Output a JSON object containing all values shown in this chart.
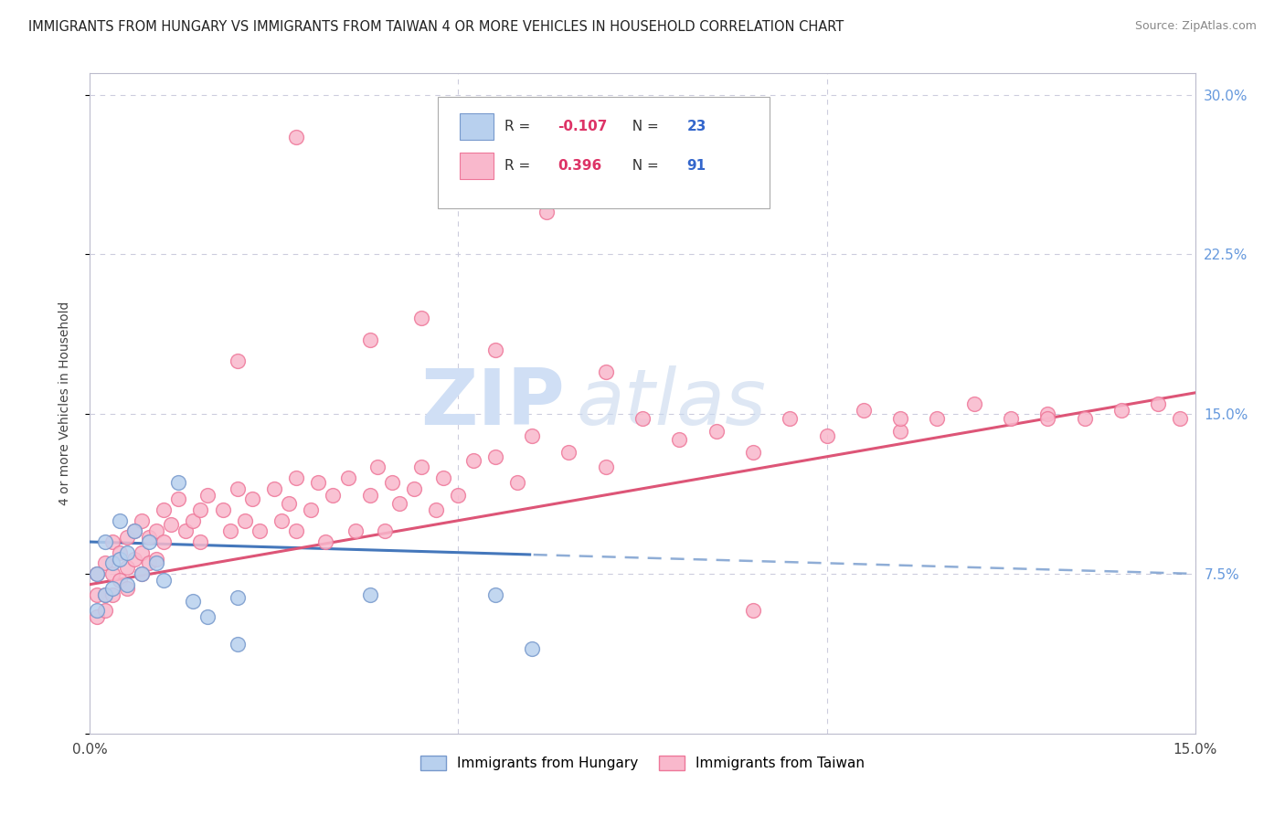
{
  "title": "IMMIGRANTS FROM HUNGARY VS IMMIGRANTS FROM TAIWAN 4 OR MORE VEHICLES IN HOUSEHOLD CORRELATION CHART",
  "source": "Source: ZipAtlas.com",
  "ylabel": "4 or more Vehicles in Household",
  "xlim": [
    0.0,
    0.15
  ],
  "ylim": [
    0.0,
    0.31
  ],
  "hungary_color": "#b8d0ee",
  "taiwan_color": "#f9b8cc",
  "hungary_edge": "#7799cc",
  "taiwan_edge": "#ee7799",
  "trend_hungary_color": "#4477bb",
  "trend_taiwan_color": "#dd5577",
  "background_color": "#ffffff",
  "grid_color": "#ccccdd",
  "watermark_color": "#d0dff5",
  "right_axis_color": "#6699dd",
  "hungary_r": "-0.107",
  "hungary_n": "23",
  "taiwan_r": "0.396",
  "taiwan_n": "91",
  "legend_r_color": "#dd3366",
  "legend_n_color": "#3366cc",
  "hungary_x": [
    0.001,
    0.001,
    0.002,
    0.002,
    0.003,
    0.003,
    0.004,
    0.004,
    0.005,
    0.005,
    0.006,
    0.006,
    0.007,
    0.007,
    0.008,
    0.009,
    0.01,
    0.011,
    0.013,
    0.014,
    0.02,
    0.055,
    0.06
  ],
  "hungary_y": [
    0.075,
    0.06,
    0.09,
    0.065,
    0.095,
    0.075,
    0.1,
    0.08,
    0.085,
    0.07,
    0.09,
    0.075,
    0.095,
    0.08,
    0.085,
    0.075,
    0.07,
    0.12,
    0.065,
    0.06,
    0.065,
    0.065,
    0.055
  ],
  "taiwan_x": [
    0.001,
    0.001,
    0.001,
    0.002,
    0.002,
    0.002,
    0.003,
    0.003,
    0.003,
    0.004,
    0.004,
    0.005,
    0.005,
    0.005,
    0.006,
    0.006,
    0.007,
    0.007,
    0.007,
    0.008,
    0.008,
    0.009,
    0.009,
    0.01,
    0.01,
    0.011,
    0.012,
    0.013,
    0.014,
    0.015,
    0.015,
    0.016,
    0.018,
    0.019,
    0.02,
    0.021,
    0.022,
    0.023,
    0.025,
    0.026,
    0.027,
    0.028,
    0.028,
    0.03,
    0.031,
    0.032,
    0.033,
    0.035,
    0.036,
    0.038,
    0.039,
    0.04,
    0.041,
    0.042,
    0.044,
    0.045,
    0.047,
    0.048,
    0.05,
    0.052,
    0.055,
    0.058,
    0.06,
    0.065,
    0.07,
    0.075,
    0.08,
    0.085,
    0.09,
    0.095,
    0.1,
    0.105,
    0.11,
    0.115,
    0.12,
    0.125,
    0.13,
    0.135,
    0.13,
    0.14,
    0.145,
    0.148,
    0.028,
    0.062,
    0.045,
    0.02,
    0.038,
    0.055,
    0.07,
    0.09,
    0.11
  ],
  "taiwan_y": [
    0.065,
    0.075,
    0.055,
    0.08,
    0.065,
    0.058,
    0.09,
    0.075,
    0.065,
    0.085,
    0.072,
    0.092,
    0.078,
    0.068,
    0.095,
    0.082,
    0.1,
    0.085,
    0.075,
    0.092,
    0.08,
    0.095,
    0.082,
    0.105,
    0.09,
    0.098,
    0.11,
    0.095,
    0.1,
    0.105,
    0.09,
    0.112,
    0.105,
    0.095,
    0.115,
    0.1,
    0.11,
    0.095,
    0.115,
    0.1,
    0.108,
    0.095,
    0.12,
    0.105,
    0.118,
    0.09,
    0.112,
    0.12,
    0.095,
    0.112,
    0.125,
    0.095,
    0.118,
    0.108,
    0.115,
    0.125,
    0.105,
    0.12,
    0.112,
    0.128,
    0.13,
    0.118,
    0.14,
    0.132,
    0.125,
    0.148,
    0.138,
    0.142,
    0.132,
    0.148,
    0.14,
    0.152,
    0.142,
    0.148,
    0.155,
    0.148,
    0.15,
    0.148,
    0.148,
    0.152,
    0.155,
    0.148,
    0.28,
    0.245,
    0.195,
    0.175,
    0.185,
    0.18,
    0.17,
    0.058,
    0.148
  ]
}
